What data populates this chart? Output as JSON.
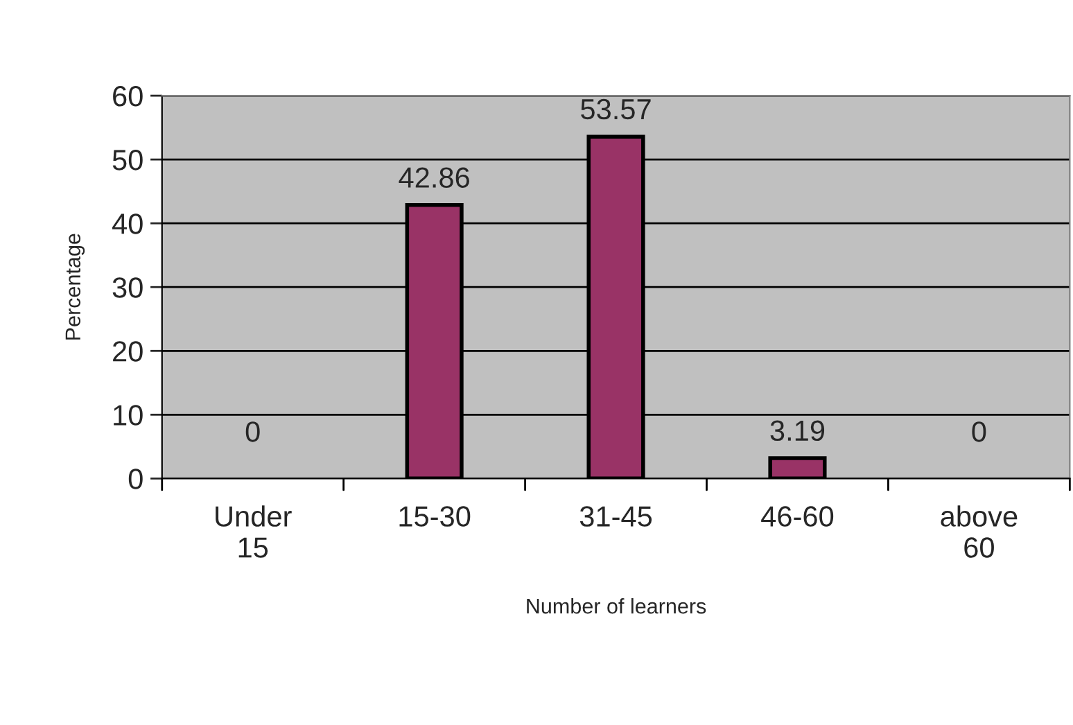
{
  "chart_data": {
    "type": "bar",
    "xlabel": "Number of learners",
    "ylabel": "Percentage",
    "categories": [
      "Under 15",
      "15-30",
      "31-45",
      "46-60",
      "above 60"
    ],
    "values": [
      0,
      42.86,
      53.57,
      3.19,
      0
    ],
    "color": "#993366",
    "ylim": [
      0,
      60
    ],
    "yticks": [
      0,
      10,
      20,
      30,
      40,
      50,
      60
    ],
    "grid": "y",
    "data_labels": true
  }
}
